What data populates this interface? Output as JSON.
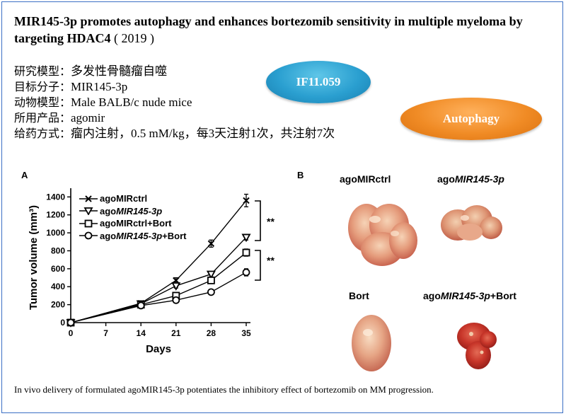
{
  "title": {
    "main": "MIR145-3p promotes autophagy and enhances bortezomib sensitivity in multiple myeloma by targeting HDAC4",
    "year": "( 2019 )"
  },
  "info": [
    {
      "label": "研究模型：",
      "value": "多发性骨髓瘤自噬"
    },
    {
      "label": "目标分子：",
      "value": "MIR145-3p"
    },
    {
      "label": "动物模型：",
      "value": "Male BALB/c nude mice"
    },
    {
      "label": "所用产品：",
      "value": "agomir"
    },
    {
      "label": "给药方式：",
      "value": "瘤内注射，0.5 mM/kg，每3天注射1次，共注射7次"
    }
  ],
  "badges": {
    "impact": "IF11.059",
    "topic": "Autophagy",
    "colors": {
      "impact": "#2a9fd0",
      "topic": "#f08b25"
    }
  },
  "panel_a_label": "A",
  "panel_b_label": "B",
  "significance": [
    "**",
    "**"
  ],
  "chart_data": {
    "type": "line",
    "xlabel": "Days",
    "ylabel": "Tumor volume (mm³)",
    "x": [
      0,
      7,
      14,
      21,
      28,
      35
    ],
    "xticks": [
      "0",
      "7",
      "14",
      "21",
      "28",
      "35"
    ],
    "yticks": [
      "0",
      "200",
      "400",
      "600",
      "800",
      "1000",
      "1200",
      "1400"
    ],
    "xlim": [
      0,
      35
    ],
    "ylim": [
      0,
      1450
    ],
    "series": [
      {
        "name": "agoMIRctrl",
        "marker": "x",
        "x": [
          0,
          14,
          21,
          28,
          35
        ],
        "values": [
          0,
          215,
          470,
          880,
          1360
        ],
        "err": [
          0,
          15,
          30,
          40,
          70
        ]
      },
      {
        "name": "agoMIR145-3p",
        "marker": "triangle-down",
        "x": [
          0,
          14,
          21,
          28,
          35
        ],
        "values": [
          0,
          210,
          410,
          540,
          950
        ],
        "err": [
          0,
          15,
          25,
          30,
          30
        ]
      },
      {
        "name": "agoMIRctrl+Bort",
        "marker": "square",
        "x": [
          0,
          14,
          21,
          28,
          35
        ],
        "values": [
          0,
          200,
          300,
          470,
          780
        ],
        "err": [
          0,
          12,
          25,
          30,
          40
        ]
      },
      {
        "name": "agoMIR145-3p+Bort",
        "marker": "circle",
        "x": [
          0,
          14,
          21,
          28,
          35
        ],
        "values": [
          0,
          190,
          250,
          340,
          560
        ],
        "err": [
          0,
          10,
          20,
          20,
          40
        ]
      }
    ]
  },
  "photos": [
    {
      "label_plain": "ago",
      "label_italic": "MIRctrl",
      "label_suffix": ""
    },
    {
      "label_plain": "ago",
      "label_italic": "MIR145-3p",
      "label_suffix": ""
    },
    {
      "label_plain": "Bort",
      "label_italic": "",
      "label_suffix": ""
    },
    {
      "label_plain": "ago",
      "label_italic": "MIR145-3p",
      "label_suffix": "+Bort"
    }
  ],
  "legend_labels": [
    {
      "plain": "agoMIRctrl",
      "italic": "",
      "suffix": ""
    },
    {
      "plain": "ago",
      "italic": "MIR145-3p",
      "suffix": ""
    },
    {
      "plain": "agoMIRctrl+Bort",
      "italic": "",
      "suffix": ""
    },
    {
      "plain": "ago",
      "italic": "MIR145-3p",
      "suffix": "+Bort"
    }
  ],
  "caption": "In vivo delivery of formulated agoMIR145-3p potentiates the inhibitory effect of bortezomib on MM progression."
}
